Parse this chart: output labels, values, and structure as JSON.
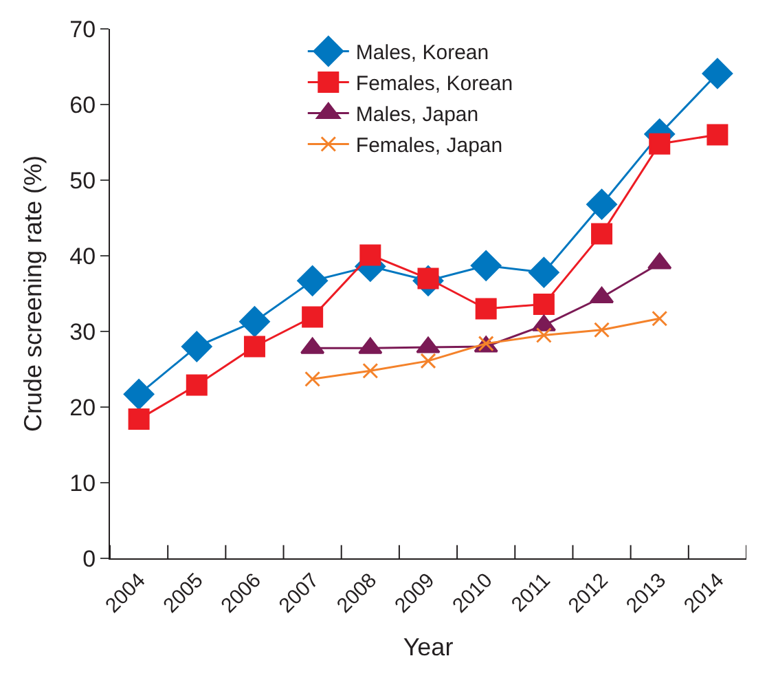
{
  "chart_data": {
    "type": "line",
    "xlabel": "Year",
    "ylabel": "Crude screening rate (%)",
    "categories": [
      "2004",
      "2005",
      "2006",
      "2007",
      "2008",
      "2009",
      "2010",
      "2011",
      "2012",
      "2013",
      "2014"
    ],
    "ylim": [
      0,
      70
    ],
    "yticks": [
      0,
      10,
      20,
      30,
      40,
      50,
      60,
      70
    ],
    "legend": "top",
    "series": [
      {
        "name": "Males, Korean",
        "color": "#0077c0",
        "marker": "diamond",
        "values": [
          21.7,
          28.0,
          31.3,
          36.7,
          38.6,
          36.7,
          38.7,
          37.8,
          46.8,
          56.1,
          64.1
        ]
      },
      {
        "name": "Females, Korean",
        "color": "#ed1c24",
        "marker": "square",
        "values": [
          18.4,
          22.9,
          28.0,
          31.9,
          40.1,
          37.0,
          33.0,
          33.6,
          42.9,
          54.8,
          56.0
        ]
      },
      {
        "name": "Males, Japan",
        "color": "#7b1a55",
        "marker": "triangle",
        "values": [
          null,
          null,
          null,
          27.8,
          27.8,
          27.9,
          28.0,
          30.8,
          34.5,
          39.0,
          null
        ]
      },
      {
        "name": "Females, Japan",
        "color": "#f4822a",
        "marker": "cross",
        "values": [
          null,
          null,
          null,
          23.7,
          24.8,
          26.1,
          28.4,
          29.5,
          30.2,
          31.7,
          null
        ]
      }
    ]
  }
}
